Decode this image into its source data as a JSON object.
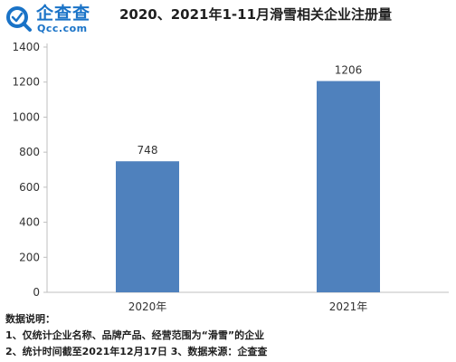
{
  "logo": {
    "text": "企查查",
    "sub": "Qcc.com"
  },
  "chart_data": {
    "type": "bar",
    "title": "2020、2021年1-11月滑雪相关企业注册量",
    "categories": [
      "2020年",
      "2021年"
    ],
    "values": [
      748,
      1206
    ],
    "data_labels": [
      "748",
      "1206"
    ],
    "ylim": [
      0,
      1400
    ],
    "yticks": [
      0,
      200,
      400,
      600,
      800,
      1000,
      1200,
      1400
    ],
    "grid": false,
    "bar_color": "#4f81bd",
    "axis_color": "#bfbfbf"
  },
  "notes": {
    "heading": "数据说明：",
    "line1": "1、仅统计企业名称、品牌产品、经营范围为“滑雪”的企业",
    "line2": "2、统计时间截至2021年12月17日  3、数据来源：企查查"
  }
}
